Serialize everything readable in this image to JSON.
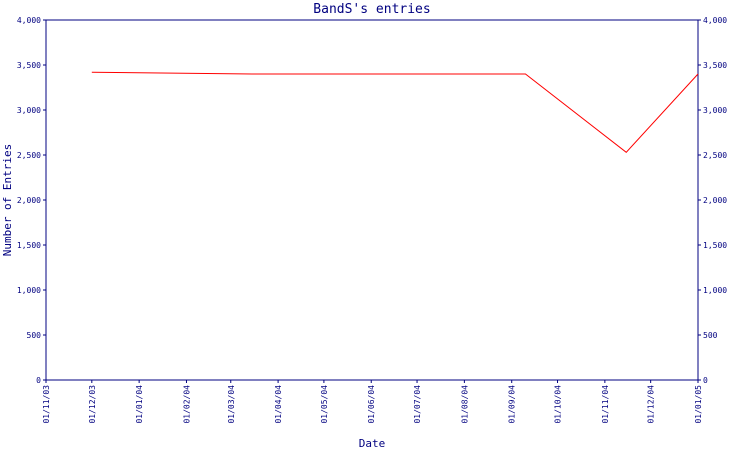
{
  "chart_data": {
    "type": "line",
    "title": "BandS's entries",
    "xlabel": "Date",
    "ylabel": "Number of Entries",
    "ylim": [
      0,
      4000
    ],
    "yticks": [
      "0",
      "500",
      "1,000",
      "1,500",
      "2,000",
      "2,500",
      "3,000",
      "3,500",
      "4,000"
    ],
    "categories": [
      "01/11/03",
      "01/12/03",
      "01/01/04",
      "01/02/04",
      "01/03/04",
      "01/04/04",
      "01/05/04",
      "01/06/04",
      "01/07/04",
      "01/08/04",
      "01/09/04",
      "01/10/04",
      "01/11/04",
      "01/12/04",
      "01/01/05"
    ],
    "series": [
      {
        "x": [
          "2003-12-01",
          "2004-03-15",
          "2004-09-10",
          "2004-11-15",
          "2005-01-01"
        ],
        "y": [
          3420,
          3400,
          3400,
          2530,
          3400
        ]
      }
    ],
    "grid": false,
    "line_color": "#ff0000",
    "axis_color": "#000080"
  }
}
